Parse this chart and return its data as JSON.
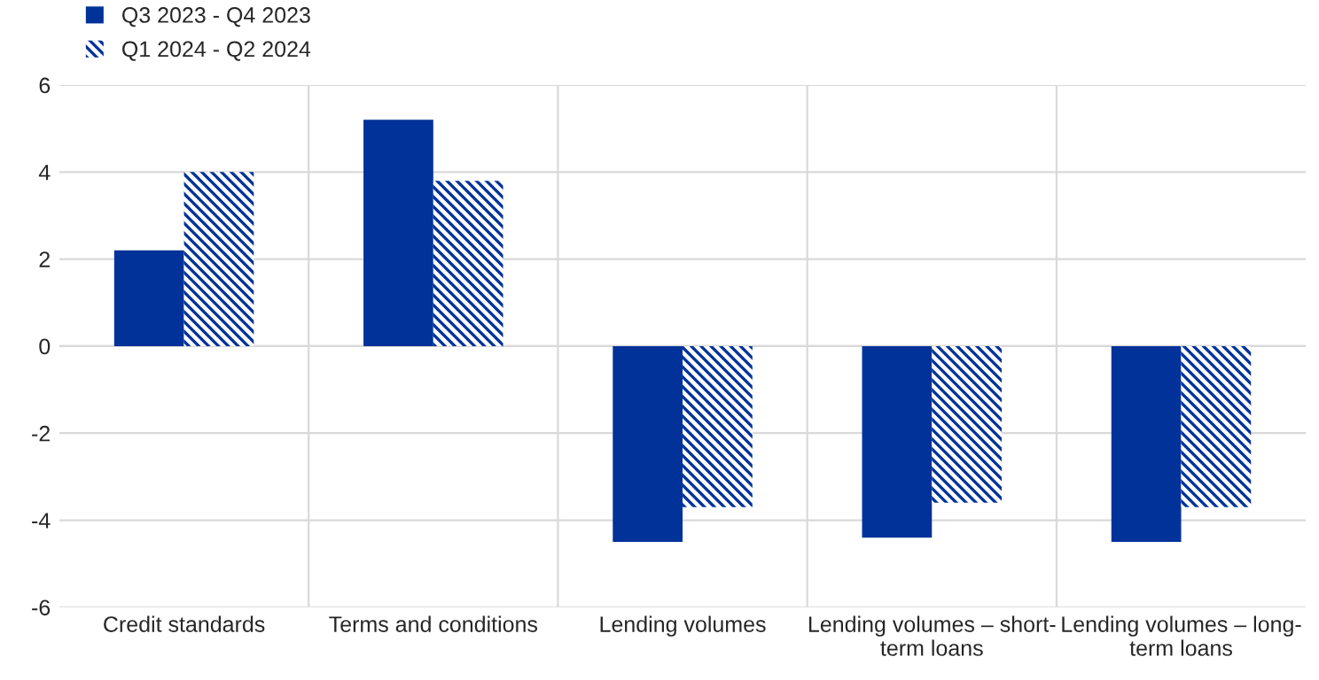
{
  "chart_data": {
    "type": "bar",
    "categories": [
      "Credit standards",
      "Terms and conditions",
      "Lending volumes",
      "Lending volumes – short-term loans",
      "Lending volumes – long-term loans"
    ],
    "series": [
      {
        "name": "Q3 2023 - Q4 2023",
        "color": "#003299",
        "values": [
          2.2,
          5.2,
          -4.5,
          -4.4,
          -4.5
        ]
      },
      {
        "name": "Q1 2024 - Q2 2024",
        "color": "#003299",
        "values": [
          4.0,
          3.8,
          -3.7,
          -3.6,
          -3.7
        ]
      }
    ],
    "ylim": [
      -6,
      6
    ],
    "yticks": [
      -6,
      -4,
      -2,
      0,
      2,
      4,
      6
    ],
    "grid": true,
    "legend": "top left"
  }
}
